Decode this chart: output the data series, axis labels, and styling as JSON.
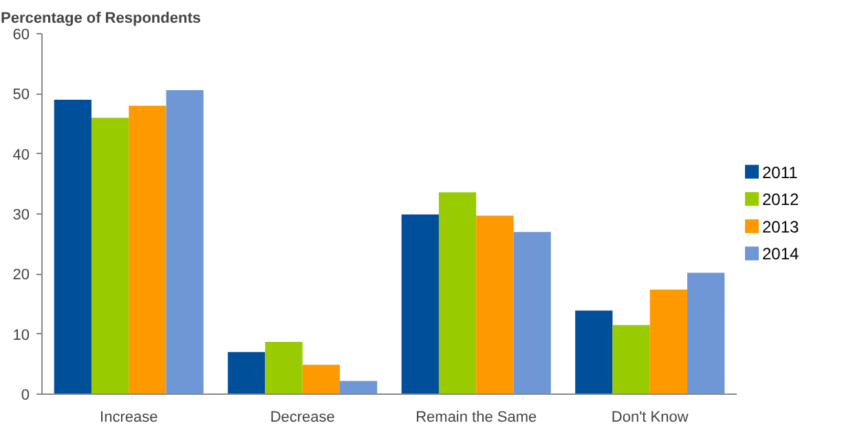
{
  "chart_data": {
    "type": "bar",
    "title": "Percentage of Respondents",
    "categories": [
      "Increase",
      "Decrease",
      "Remain the Same",
      "Don't Know"
    ],
    "series": [
      {
        "name": "2011",
        "color": "#004f9a",
        "values": [
          49,
          7,
          29.9,
          13.9
        ]
      },
      {
        "name": "2012",
        "color": "#99cc00",
        "values": [
          46,
          8.7,
          33.6,
          11.5
        ]
      },
      {
        "name": "2013",
        "color": "#ff9900",
        "values": [
          48,
          4.9,
          29.7,
          17.4
        ]
      },
      {
        "name": "2014",
        "color": "#6f97d6",
        "values": [
          50.6,
          2.2,
          27,
          20.2
        ]
      }
    ],
    "ylim": [
      0,
      60
    ],
    "yticks": [
      0,
      10,
      20,
      30,
      40,
      50,
      60
    ],
    "grid": false,
    "legend": "right"
  }
}
